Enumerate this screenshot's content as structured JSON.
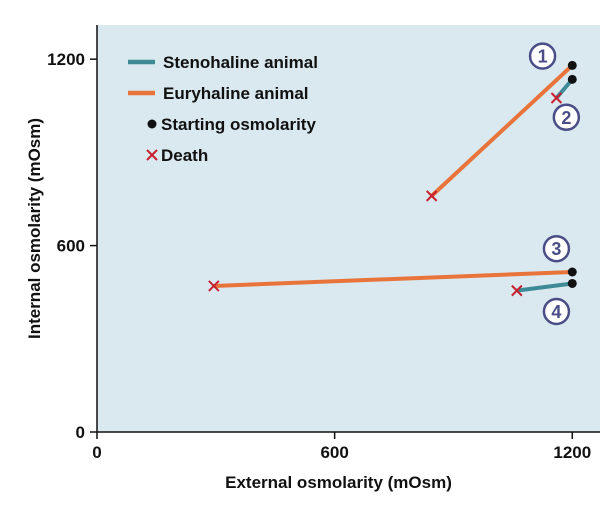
{
  "chart_data": {
    "type": "line",
    "xlabel": "External osmolarity (mOsm)",
    "ylabel": "Internal osmolarity (mOsm)",
    "xlim": [
      0,
      1270
    ],
    "ylim": [
      0,
      1310
    ],
    "x_ticks": [
      0,
      600,
      1200
    ],
    "y_ticks": [
      0,
      600,
      1200
    ],
    "x_tick_labels": [
      "0",
      "600",
      "1200"
    ],
    "y_tick_labels": [
      "0",
      "600",
      "1200"
    ],
    "grid": false,
    "legend_position": "top-left",
    "legend": [
      {
        "label": "Stenohaline animal",
        "kind": "line",
        "color": "#3d8a96"
      },
      {
        "label": "Euryhaline animal",
        "kind": "line",
        "color": "#e8743c"
      },
      {
        "label": "Starting osmolarity",
        "kind": "dot",
        "color": "#111111"
      },
      {
        "label": "Death",
        "kind": "x",
        "color": "#c8202e"
      }
    ],
    "series": [
      {
        "id": "1",
        "name": "Euryhaline animal",
        "color": "#e8743c",
        "start": {
          "x": 1200,
          "y": 1180
        },
        "end": {
          "x": 845,
          "y": 760
        }
      },
      {
        "id": "2",
        "name": "Stenohaline animal",
        "color": "#3d8a96",
        "start": {
          "x": 1200,
          "y": 1135
        },
        "end": {
          "x": 1160,
          "y": 1075
        }
      },
      {
        "id": "3",
        "name": "Euryhaline animal",
        "color": "#e8743c",
        "start": {
          "x": 1200,
          "y": 515
        },
        "end": {
          "x": 295,
          "y": 470
        }
      },
      {
        "id": "4",
        "name": "Stenohaline animal",
        "color": "#3d8a96",
        "start": {
          "x": 1200,
          "y": 478
        },
        "end": {
          "x": 1060,
          "y": 455
        }
      }
    ],
    "annotations": [
      {
        "label": "1",
        "at": {
          "x": 1125,
          "y": 1210
        }
      },
      {
        "label": "2",
        "at": {
          "x": 1185,
          "y": 1013
        }
      },
      {
        "label": "3",
        "at": {
          "x": 1160,
          "y": 590
        }
      },
      {
        "label": "4",
        "at": {
          "x": 1160,
          "y": 388
        }
      }
    ],
    "colors": {
      "background": "#d9e9ef",
      "marker_ring": "#4a4d86",
      "axis": "#111111"
    }
  }
}
